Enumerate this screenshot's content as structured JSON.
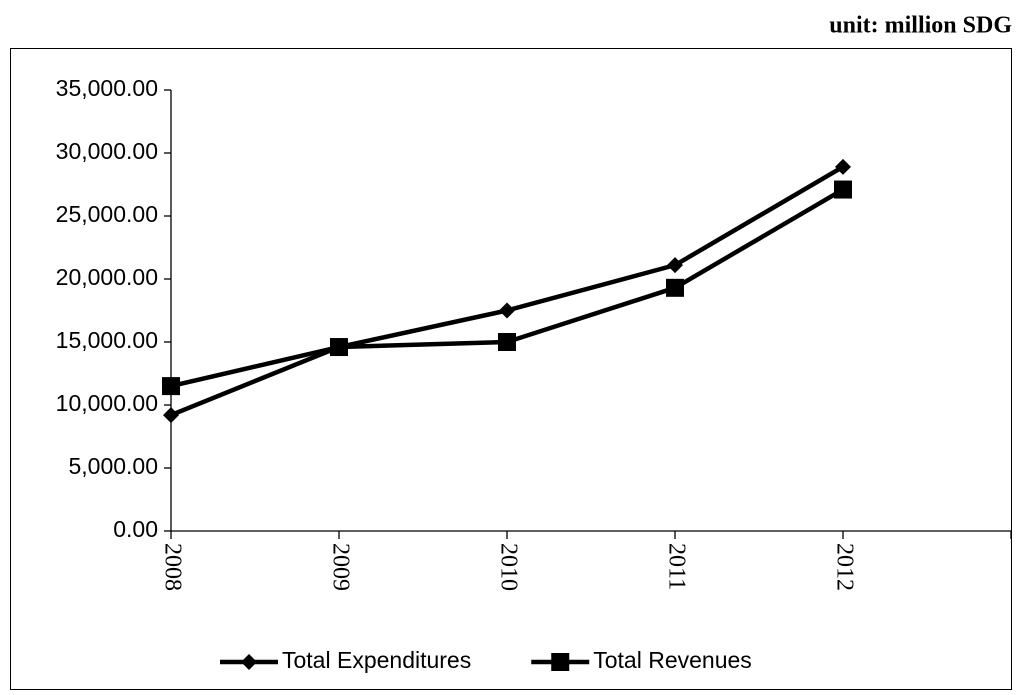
{
  "chart_data": {
    "type": "line",
    "annotation": "unit: million SDG",
    "categories": [
      "2008",
      "2009",
      "2010",
      "2011",
      "2012",
      null
    ],
    "series": [
      {
        "name": "Total Expenditures",
        "color": "#000000",
        "marker": "diamond",
        "values": [
          9200,
          14600,
          17500,
          21100,
          28900,
          null
        ]
      },
      {
        "name": "Total Revenues",
        "color": "#000000",
        "marker": "square",
        "values": [
          11500,
          14600,
          15000,
          19300,
          27100,
          null
        ]
      }
    ],
    "ylim": [
      0,
      35000
    ],
    "yticks": [
      {
        "value": 0,
        "label": "0.00"
      },
      {
        "value": 5000,
        "label": "5,000.00"
      },
      {
        "value": 10000,
        "label": "10,000.00"
      },
      {
        "value": 15000,
        "label": "15,000.00"
      },
      {
        "value": 20000,
        "label": "20,000.00"
      },
      {
        "value": 25000,
        "label": "25,000.00"
      },
      {
        "value": 30000,
        "label": "30,000.00"
      },
      {
        "value": 35000,
        "label": "35,000.00"
      }
    ],
    "grid": false,
    "legend": "bottom"
  }
}
